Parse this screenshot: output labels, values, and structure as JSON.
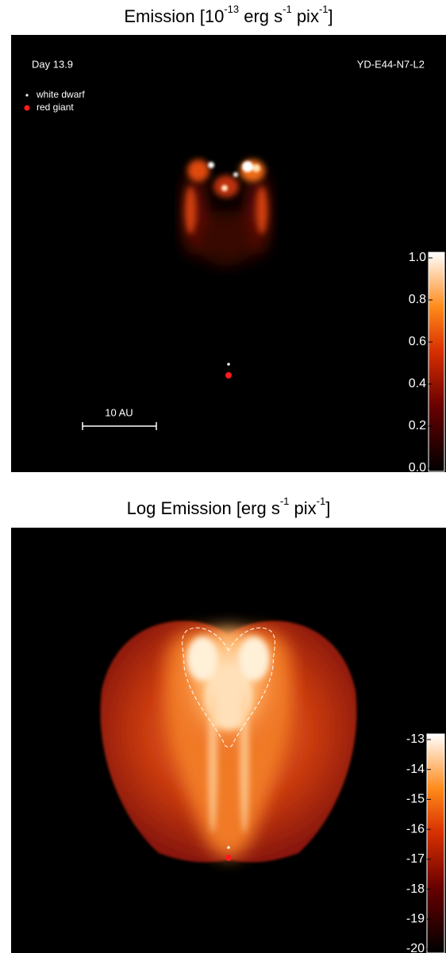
{
  "panels": [
    {
      "title": [
        "Emission [10",
        "-13",
        " erg s",
        "-1",
        " pix",
        "-1",
        "]"
      ],
      "day": "Day 13.9",
      "model": "YD-E44-N7-L2",
      "legend": [
        {
          "name": "white dwarf",
          "color": "#e8f8f8"
        },
        {
          "name": "red giant",
          "color": "#ff1a1a"
        }
      ],
      "scale_bar": "10 AU",
      "colorbar": {
        "lim": [
          0,
          1
        ],
        "ticks": [
          {
            "value": 0,
            "label": "0.0"
          },
          {
            "value": 0.2,
            "label": "0.2"
          },
          {
            "value": 0.4,
            "label": "0.4"
          },
          {
            "value": 0.6,
            "label": "0.6"
          },
          {
            "value": 0.8,
            "label": "0.8"
          },
          {
            "value": 1,
            "label": "1.0"
          }
        ]
      }
    },
    {
      "title": [
        "Log Emission [erg s",
        "-1",
        " pix",
        "-1",
        "]"
      ],
      "colorbar": {
        "lim": [
          -20,
          -13
        ],
        "ticks": [
          -13,
          -14,
          -15,
          -16,
          -17,
          -18,
          -19,
          -20
        ]
      }
    }
  ]
}
